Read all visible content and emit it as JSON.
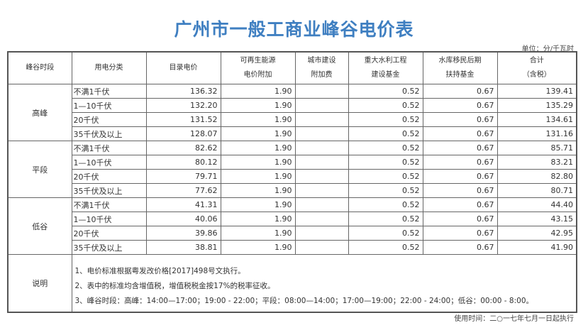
{
  "title": "广州市一般工商业峰谷电价表",
  "unit": "单位：分/千瓦时",
  "headers": [
    "峰谷时段",
    "用电分类",
    "目录电价",
    "可再生能源\n电价附加",
    "城市建设\n附加费",
    "重大水利工程\n建设基金",
    "水库移民后期\n扶持基金",
    "合计\n（含税）"
  ],
  "groups": [
    {
      "period": "高峰",
      "rows": [
        [
          "不满1千伏",
          "136.32",
          "1.90",
          "",
          "0.52",
          "0.67",
          "139.41"
        ],
        [
          "1—10千伏",
          "132.20",
          "1.90",
          "",
          "0.52",
          "0.67",
          "135.29"
        ],
        [
          "20千伏",
          "131.52",
          "1.90",
          "",
          "0.52",
          "0.67",
          "134.61"
        ],
        [
          "35千伏及以上",
          "128.07",
          "1.90",
          "",
          "0.52",
          "0.67",
          "131.16"
        ]
      ]
    },
    {
      "period": "平段",
      "rows": [
        [
          "不满1千伏",
          "82.62",
          "1.90",
          "",
          "0.52",
          "0.67",
          "85.71"
        ],
        [
          "1—10千伏",
          "80.12",
          "1.90",
          "",
          "0.52",
          "0.67",
          "83.21"
        ],
        [
          "20千伏",
          "79.71",
          "1.90",
          "",
          "0.52",
          "0.67",
          "82.80"
        ],
        [
          "35千伏及以上",
          "77.62",
          "1.90",
          "",
          "0.52",
          "0.67",
          "80.71"
        ]
      ]
    },
    {
      "period": "低谷",
      "rows": [
        [
          "不满1千伏",
          "41.31",
          "1.90",
          "",
          "0.52",
          "0.67",
          "44.40"
        ],
        [
          "1—10千伏",
          "40.06",
          "1.90",
          "",
          "0.52",
          "0.67",
          "43.15"
        ],
        [
          "20千伏",
          "39.86",
          "1.90",
          "",
          "0.52",
          "0.67",
          "42.95"
        ],
        [
          "35千伏及以上",
          "38.81",
          "1.90",
          "",
          "0.52",
          "0.67",
          "41.90"
        ]
      ]
    }
  ],
  "notes_label": "说明",
  "notes": [
    "1、电价标准根据粤发改价格[2017]498号文执行。",
    "2、表中的标准均含增值税，增值税税金按17%的税率征收。",
    "3、峰谷时段：高峰：14:00—17:00；19:00 - 22:00；平段：08:00—14:00；17:00—19:00；22:00 - 24:00；低谷：00:00 - 8:00。"
  ],
  "footer": "使用时间：二○一七年七月一日起执行",
  "colors": {
    "title": "#3f7fc1"
  }
}
